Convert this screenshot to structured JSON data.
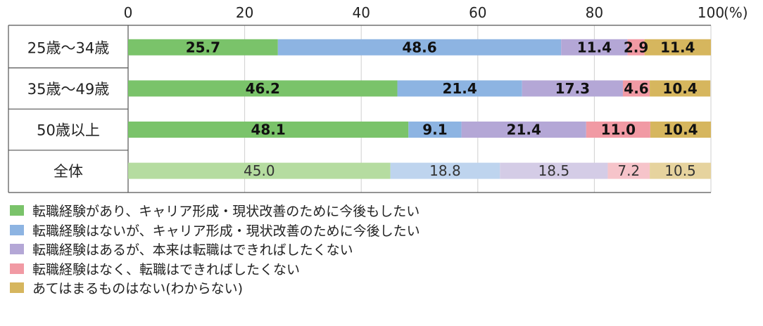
{
  "chart_data": {
    "type": "bar",
    "orientation": "horizontal",
    "stacked": true,
    "x_ticks": [
      "0",
      "20",
      "40",
      "60",
      "80",
      "100"
    ],
    "unit": "(%)",
    "xlim": [
      0,
      100
    ],
    "categories": [
      "25歳〜34歳",
      "35歳〜49歳",
      "50歳以上",
      "全体"
    ],
    "series": [
      {
        "name": "転職経験があり、キャリア形成・現状改善のために今後もしたい",
        "color": "#7ac36a",
        "light_color": "#b5dca0",
        "values": [
          25.7,
          46.2,
          48.1,
          45.0
        ]
      },
      {
        "name": "転職経験はないが、キャリア形成・現状改善のために今後したい",
        "color": "#8db4e2",
        "light_color": "#bed4ee",
        "values": [
          48.6,
          21.4,
          9.1,
          18.8
        ]
      },
      {
        "name": "転職経験はあるが、本来は転職はできればしたくない",
        "color": "#b4a7d6",
        "light_color": "#d4cce6",
        "values": [
          11.4,
          17.3,
          21.4,
          18.5
        ]
      },
      {
        "name": "転職経験はなく、転職はできればしたくない",
        "color": "#f19aa4",
        "light_color": "#f6c4ca",
        "values": [
          2.9,
          4.6,
          11.0,
          7.2
        ]
      },
      {
        "name": "あてはまるものはない(わからない)",
        "color": "#d6b65e",
        "light_color": "#e6d39e",
        "values": [
          11.4,
          10.4,
          10.4,
          10.5
        ]
      }
    ],
    "value_labels": [
      [
        "25.7",
        "48.6",
        "11.4",
        "2.9",
        "11.4"
      ],
      [
        "46.2",
        "21.4",
        "17.3",
        "4.6",
        "10.4"
      ],
      [
        "48.1",
        "9.1",
        "21.4",
        "11.0",
        "10.4"
      ],
      [
        "45.0",
        "18.8",
        "18.5",
        "7.2",
        "10.5"
      ]
    ],
    "highlight_last_category_lighter": true,
    "grid": true,
    "legend_position": "bottom-left"
  }
}
